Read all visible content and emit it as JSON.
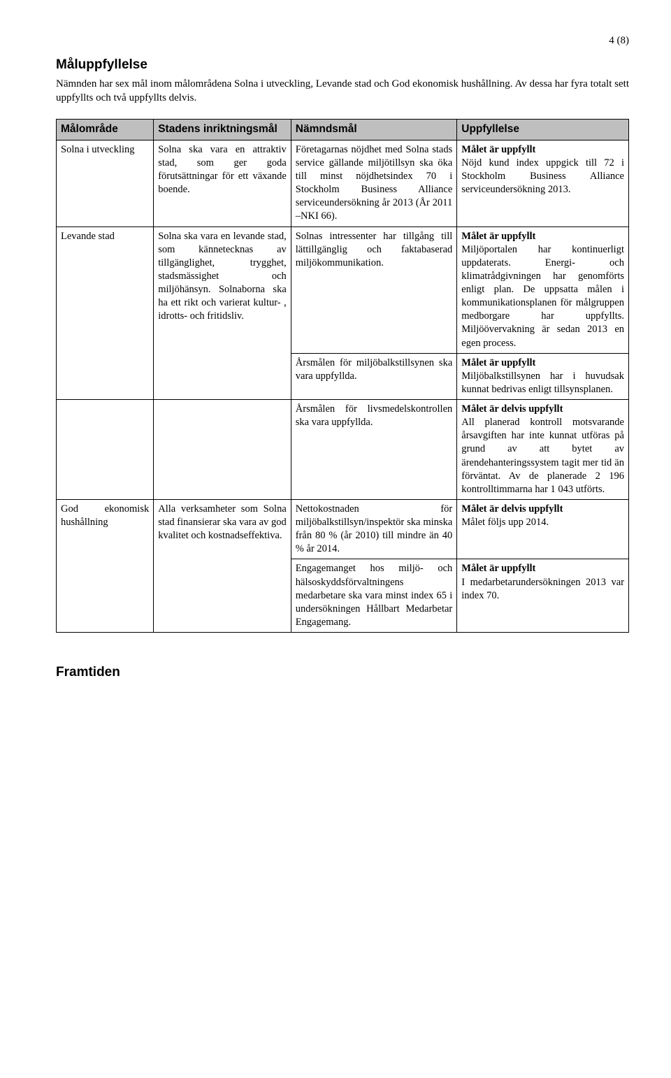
{
  "pageNumber": "4 (8)",
  "section1Title": "Måluppfyllelse",
  "intro": "Nämnden har sex mål inom målområdena Solna i utveckling, Levande stad och God ekonomisk hushållning. Av dessa har fyra totalt sett uppfyllts och två uppfyllts delvis.",
  "headers": {
    "c1": "Målområde",
    "c2": "Stadens inriktningsmål",
    "c3": "Nämndsmål",
    "c4": "Uppfyllelse"
  },
  "rows": [
    {
      "c1": "Solna i utveckling",
      "c2": "Solna ska vara en attraktiv stad, som ger goda förutsättningar för ett växande boende.",
      "c3": "Företagarnas nöjdhet med Solna stads service gällande miljötillsyn ska öka till minst nöjdhetsindex 70 i Stockholm Business Alliance serviceundersökning år 2013 (År 2011 –NKI 66).",
      "c4b": "Målet är uppfyllt",
      "c4": "Nöjd kund index uppgick till 72 i Stockholm Business Alliance serviceundersökning 2013."
    },
    {
      "c1": "Levande stad",
      "c2": "Solna ska vara en levande stad, som kännetecknas av tillgänglighet, trygghet, stadsmässighet och miljöhänsyn. Solnaborna ska ha ett rikt och varierat kultur- , idrotts- och fritidsliv.",
      "c3": "Solnas intressenter har tillgång till lättillgänglig och faktabaserad miljökommunikation.",
      "c4b": "Målet är uppfyllt",
      "c4": "Miljöportalen har kontinuerligt uppdaterats. Energi- och klimatrådgivningen har genomförts enligt plan. De uppsatta målen i kommunikationsplanen för målgruppen medborgare har uppfyllts. Miljöövervakning är sedan 2013 en egen process."
    },
    {
      "c3": "Årsmålen för miljöbalkstillsynen ska vara uppfyllda.",
      "c4b": "Målet är uppfyllt",
      "c4": "Miljöbalkstillsynen har i huvudsak kunnat bedrivas enligt tillsynsplanen."
    },
    {
      "c3": "Årsmålen för livsmedelskontrollen ska vara uppfyllda.",
      "c4b": "Målet är delvis uppfyllt",
      "c4": "All planerad kontroll motsvarande årsavgiften har inte kunnat utföras på grund av att bytet av ärendehanteringssystem tagit mer tid än förväntat. Av de planerade 2 196 kontrolltimmarna har 1 043 utförts."
    },
    {
      "c1": "God ekonomisk hushållning",
      "c2": "Alla verksamheter som Solna stad finansierar ska vara av god kvalitet och kostnadseffektiva.",
      "c3": "Nettokostnaden för miljöbalkstillsyn/inspektör ska minska från 80 % (år 2010) till mindre än 40 % år 2014.",
      "c4b": "Målet är delvis uppfyllt",
      "c4": "Målet följs upp 2014."
    },
    {
      "c3": "Engagemanget hos miljö- och hälsoskyddsförvaltningens medarbetare ska vara minst index 65 i undersökningen Hållbart Medarbetar Engagemang.",
      "c4b": "Målet är uppfyllt",
      "c4": "I medarbetarundersökningen 2013 var index 70."
    }
  ],
  "footerTitle": "Framtiden",
  "style": {
    "headerBg": "#bfbfbf",
    "borderColor": "#000000",
    "bodyFont": "Garamond",
    "headingFont": "Arial"
  }
}
